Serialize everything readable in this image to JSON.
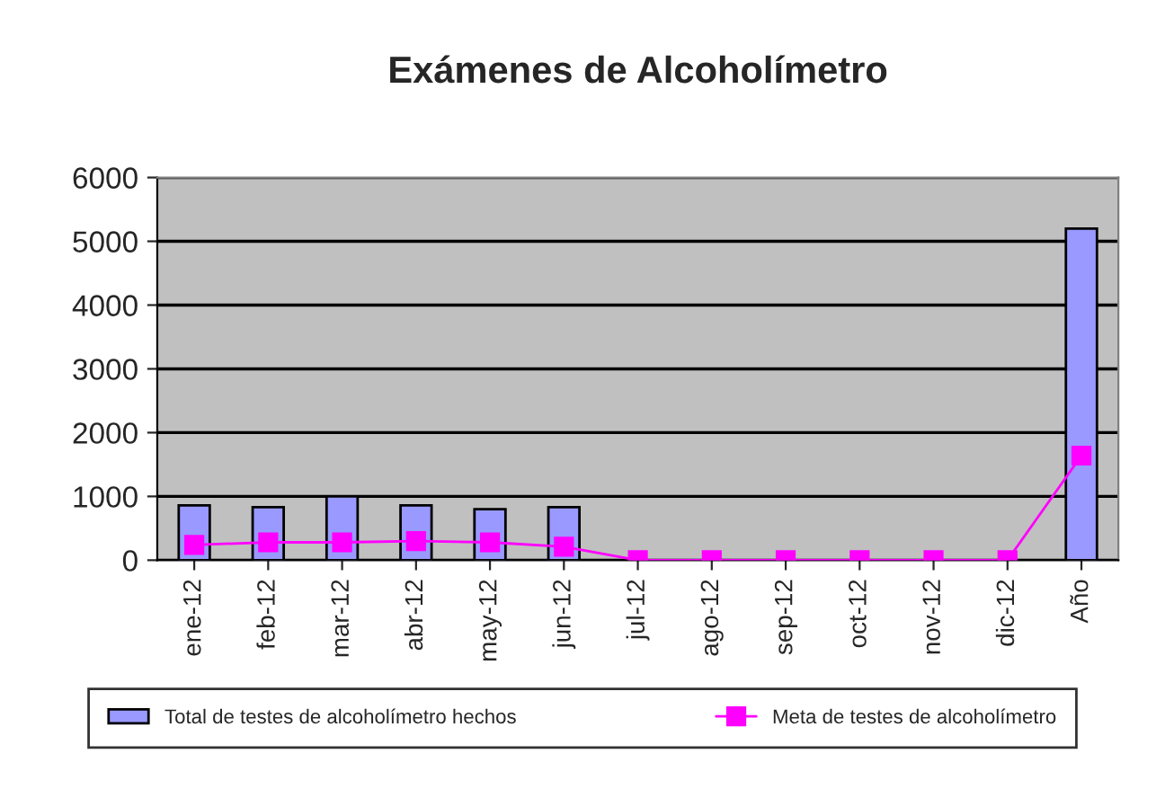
{
  "chart_data": {
    "type": "bar",
    "title": "Exámenes de Alcoholímetro",
    "categories": [
      "ene-12",
      "feb-12",
      "mar-12",
      "abr-12",
      "may-12",
      "jun-12",
      "jul-12",
      "ago-12",
      "sep-12",
      "oct-12",
      "nov-12",
      "dic-12",
      "Año"
    ],
    "series": [
      {
        "name": "Total de testes de alcoholímetro hechos",
        "color": "#9999ff",
        "values": [
          860,
          830,
          1000,
          860,
          800,
          830,
          null,
          null,
          null,
          null,
          null,
          null,
          5200
        ]
      },
      {
        "name": "Meta de testes de alcoholímetro",
        "type": "line",
        "color": "#ff00ff",
        "marker": "square",
        "values": [
          240,
          280,
          280,
          300,
          280,
          210,
          0,
          0,
          0,
          0,
          0,
          0,
          1640
        ]
      }
    ],
    "ylim": [
      0,
      6000
    ],
    "yticks": [
      0,
      1000,
      2000,
      3000,
      4000,
      5000,
      6000
    ],
    "grid": "y",
    "legend": "bottom"
  }
}
